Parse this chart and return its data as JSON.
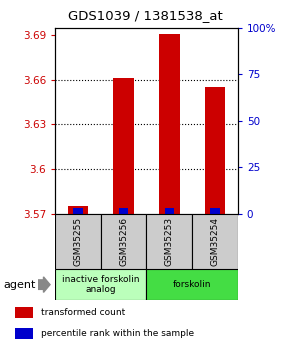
{
  "title": "GDS1039 / 1381538_at",
  "samples": [
    "GSM35255",
    "GSM35256",
    "GSM35253",
    "GSM35254"
  ],
  "red_values": [
    3.575,
    3.661,
    3.691,
    3.655
  ],
  "blue_percentile": [
    3,
    3,
    3,
    3
  ],
  "y_base": 3.57,
  "ylim": [
    3.57,
    3.695
  ],
  "y_ticks": [
    3.57,
    3.6,
    3.63,
    3.66,
    3.69
  ],
  "y_tick_labels": [
    "3.57",
    "3.6",
    "3.63",
    "3.66",
    "3.69"
  ],
  "y2_ticks": [
    0,
    25,
    50,
    75,
    100
  ],
  "y2_tick_labels": [
    "0",
    "25",
    "50",
    "75",
    "100%"
  ],
  "groups": [
    {
      "label": "inactive forskolin\nanalog",
      "color": "#bbffbb",
      "x_start": 0.5,
      "x_end": 2.5
    },
    {
      "label": "forskolin",
      "color": "#44dd44",
      "x_start": 2.5,
      "x_end": 4.5
    }
  ],
  "agent_label": "agent",
  "legend_items": [
    {
      "color": "#cc0000",
      "label": "transformed count"
    },
    {
      "color": "#0000cc",
      "label": "percentile rank within the sample"
    }
  ],
  "bar_width": 0.45,
  "red_color": "#cc0000",
  "blue_color": "#0000cc",
  "left_tick_color": "#cc0000",
  "right_tick_color": "#0000cc",
  "grid_color": "#333333",
  "sample_box_color": "#cccccc",
  "xlim": [
    0.5,
    4.5
  ]
}
